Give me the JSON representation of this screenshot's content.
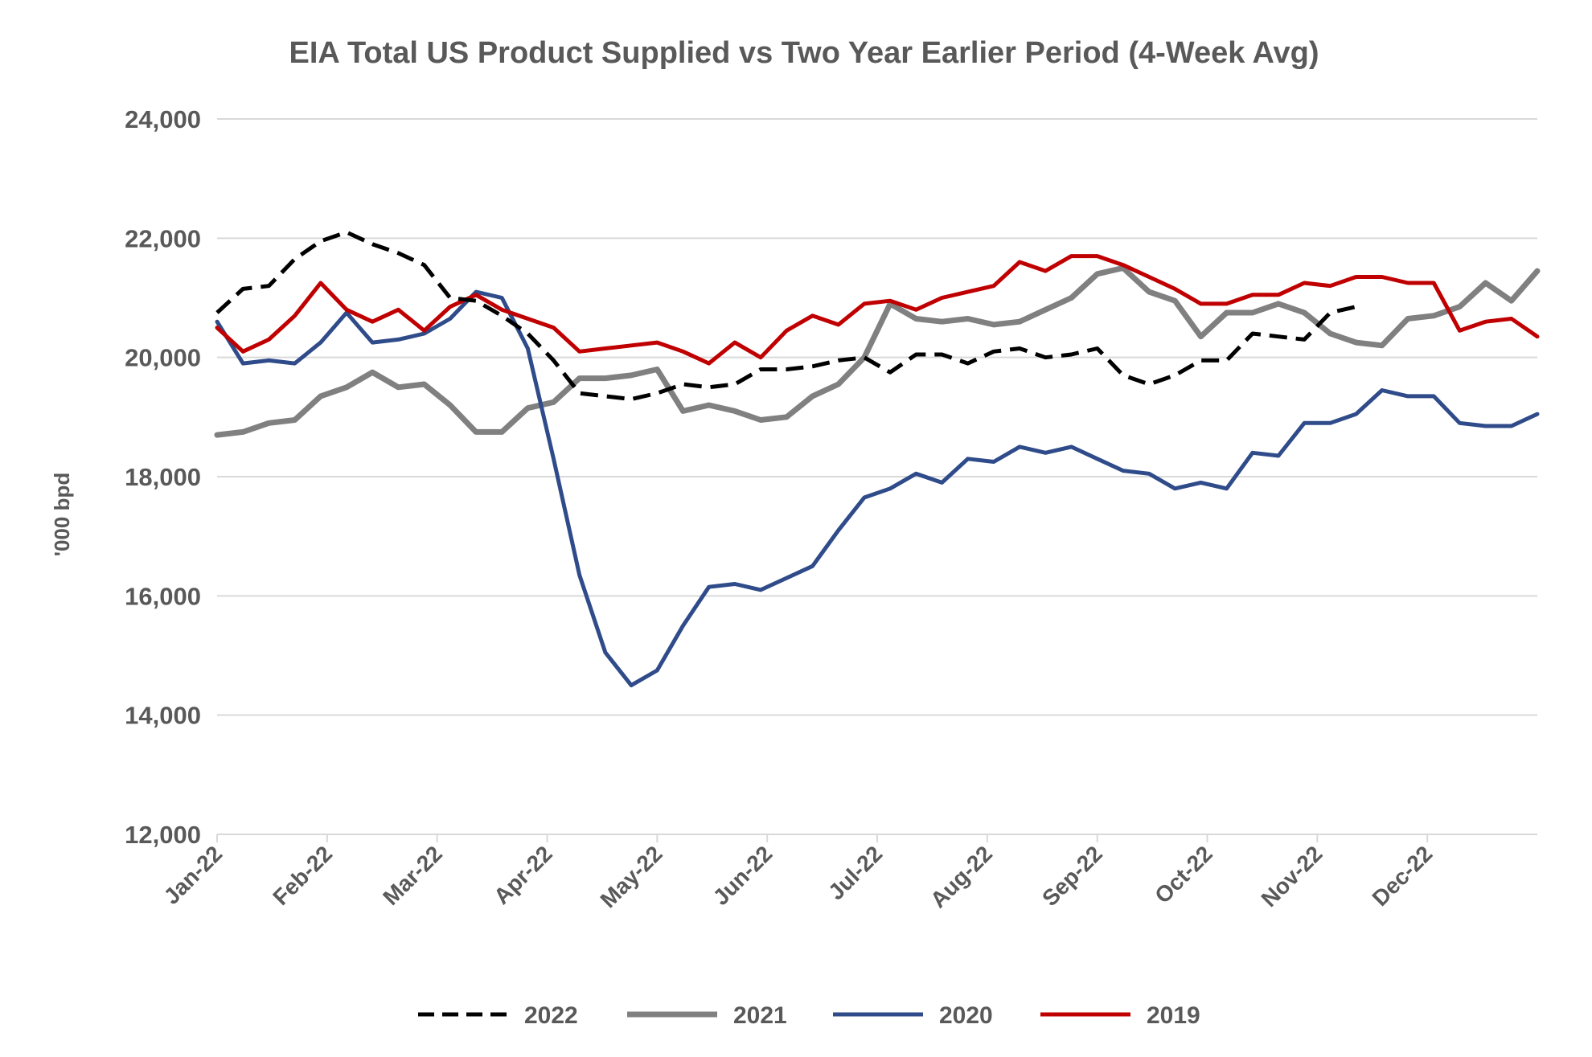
{
  "chart_data": {
    "type": "line",
    "title": "EIA  Total US Product Supplied vs Two Year Earlier Period (4-Week Avg)",
    "ylabel": "'000 bpd",
    "xlabel": "",
    "ylim": [
      12000,
      24000
    ],
    "yticks": [
      "12,000",
      "14,000",
      "16,000",
      "18,000",
      "20,000",
      "22,000",
      "24,000"
    ],
    "ytick_values": [
      12000,
      14000,
      16000,
      18000,
      20000,
      22000,
      24000
    ],
    "x_tick_labels": [
      "Jan-22",
      "Feb-22",
      "Mar-22",
      "Apr-22",
      "May-22",
      "Jun-22",
      "Jul-22",
      "Aug-22",
      "Sep-22",
      "Oct-22",
      "Nov-22",
      "Dec-22"
    ],
    "x_unit": "week",
    "weeks_total": 52,
    "grid": true,
    "legend_position": "bottom",
    "series": [
      {
        "name": "2022",
        "color": "#000000",
        "style": "dashed",
        "values": [
          20750,
          21150,
          21200,
          21650,
          21950,
          22100,
          21900,
          21750,
          21550,
          21000,
          20950,
          20700,
          20400,
          19950,
          19400,
          19350,
          19300,
          19400,
          19550,
          19500,
          19550,
          19800,
          19800,
          19850,
          19950,
          20000,
          19750,
          20050,
          20050,
          19900,
          20100,
          20150,
          20000,
          20050,
          20150,
          19700,
          19550,
          19700,
          19950,
          19950,
          20400,
          20350,
          20300,
          20750,
          20850
        ]
      },
      {
        "name": "2021",
        "color": "#808080",
        "style": "solid",
        "values": [
          18700,
          18750,
          18900,
          18950,
          19350,
          19500,
          19750,
          19500,
          19550,
          19200,
          18750,
          18750,
          19150,
          19250,
          19650,
          19650,
          19700,
          19800,
          19100,
          19200,
          19100,
          18950,
          19000,
          19350,
          19550,
          20000,
          20900,
          20650,
          20600,
          20650,
          20550,
          20600,
          20800,
          21000,
          21400,
          21500,
          21100,
          20950,
          20350,
          20750,
          20750,
          20900,
          20750,
          20400,
          20250,
          20200,
          20650,
          20700,
          20850,
          21250,
          20950,
          21450
        ]
      },
      {
        "name": "2020",
        "color": "#2f4b8a",
        "style": "solid",
        "values": [
          20600,
          19900,
          19950,
          19900,
          20250,
          20750,
          20250,
          20300,
          20400,
          20650,
          21100,
          21000,
          20150,
          18300,
          16350,
          15050,
          14500,
          14750,
          15500,
          16150,
          16200,
          16100,
          16300,
          16500,
          17100,
          17650,
          17800,
          18050,
          17900,
          18300,
          18250,
          18500,
          18400,
          18500,
          18300,
          18100,
          18050,
          17800,
          17900,
          17800,
          18400,
          18350,
          18900,
          18900,
          19050,
          19450,
          19350,
          19350,
          18900,
          18850,
          18850,
          19050
        ]
      },
      {
        "name": "2019",
        "color": "#c00000",
        "style": "solid",
        "values": [
          20500,
          20100,
          20300,
          20700,
          21250,
          20800,
          20600,
          20800,
          20450,
          20850,
          21050,
          20800,
          20650,
          20500,
          20100,
          20150,
          20200,
          20250,
          20100,
          19900,
          20250,
          20000,
          20450,
          20700,
          20550,
          20900,
          20950,
          20800,
          21000,
          21100,
          21200,
          21600,
          21450,
          21700,
          21700,
          21550,
          21350,
          21150,
          20900,
          20900,
          21050,
          21050,
          21250,
          21200,
          21350,
          21350,
          21250,
          21250,
          20450,
          20600,
          20650,
          20350
        ]
      }
    ]
  }
}
